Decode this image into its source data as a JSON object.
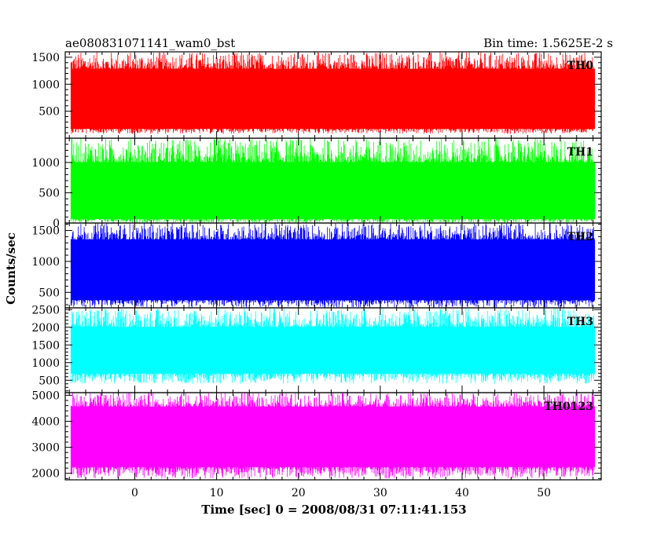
{
  "header": {
    "left": "ae080831071141_wam0_bst",
    "right": "Bin time: 1.5625E-2 s"
  },
  "chart_data": {
    "type": "line",
    "title": "ae080831071141_wam0_bst",
    "subtitle": "Bin time: 1.5625E-2 s",
    "xlabel": "Time [sec] 0 = 2008/08/31 07:11:41.153",
    "ylabel": "Counts/sec",
    "xlim": [
      -8.5,
      57
    ],
    "x_ticks": [
      0,
      10,
      20,
      30,
      40,
      50
    ],
    "data_x_range": [
      -7.8,
      56.2
    ],
    "bin_time": 0.015625,
    "panels": [
      {
        "name": "TH0",
        "color": "#ff0000",
        "ylim": [
          0,
          1600
        ],
        "y_ticks": [
          500,
          1000,
          1500
        ],
        "band_low": 180,
        "band_high": 1280,
        "min_dip": 80,
        "max_spike": 1600
      },
      {
        "name": "TH1",
        "color": "#00ff00",
        "ylim": [
          0,
          1400
        ],
        "y_ticks": [
          0,
          500,
          1000
        ],
        "band_low": 70,
        "band_high": 1000,
        "min_dip": 0,
        "max_spike": 1400
      },
      {
        "name": "TH2",
        "color": "#0000ff",
        "ylim": [
          250,
          1620
        ],
        "y_ticks": [
          500,
          1000,
          1500
        ],
        "band_low": 380,
        "band_high": 1350,
        "min_dip": 250,
        "max_spike": 1620
      },
      {
        "name": "TH3",
        "color": "#00ffff",
        "ylim": [
          150,
          2550
        ],
        "y_ticks": [
          500,
          1000,
          1500,
          2000,
          2500
        ],
        "band_low": 700,
        "band_high": 2000,
        "min_dip": 400,
        "max_spike": 2550
      },
      {
        "name": "TH0123",
        "color": "#ff00ff",
        "ylim": [
          1750,
          5100
        ],
        "y_ticks": [
          2000,
          3000,
          4000,
          5000
        ],
        "band_low": 2250,
        "band_high": 4550,
        "min_dip": 1800,
        "max_spike": 5100
      }
    ]
  }
}
